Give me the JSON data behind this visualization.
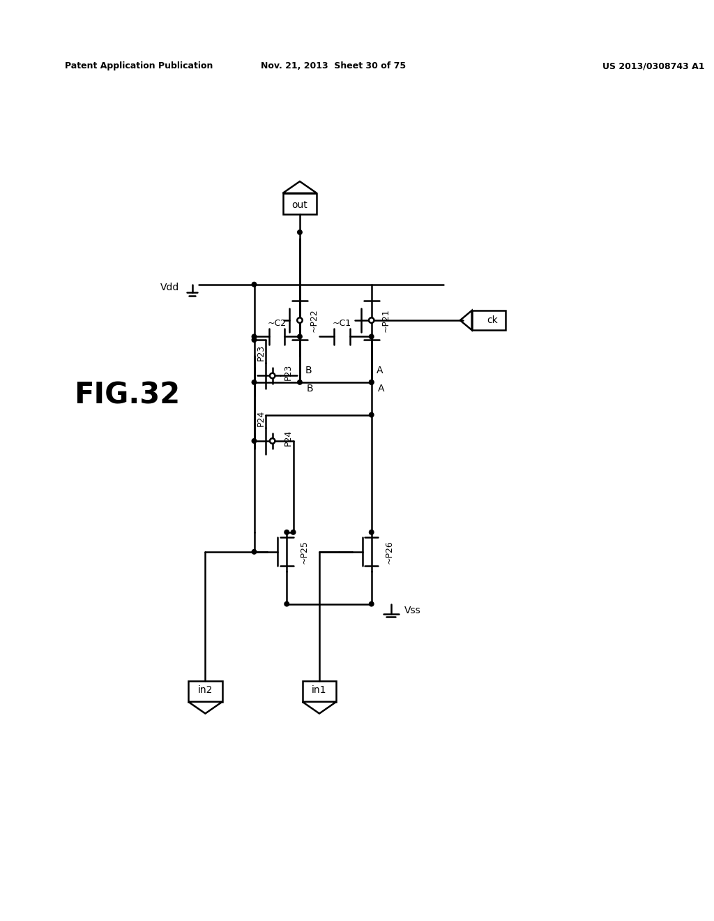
{
  "title": "FIG.32",
  "header_left": "Patent Application Publication",
  "header_mid": "Nov. 21, 2013  Sheet 30 of 75",
  "header_right": "US 2013/0308743 A1",
  "background": "#ffffff",
  "line_color": "#000000",
  "line_width": 1.8,
  "fig_label": "FIG.32",
  "labels": {
    "Vdd": "Vdd",
    "out": "out",
    "ck": "ck",
    "Vss": "Vss",
    "in1": "in1",
    "in2": "in2",
    "P21": "~P21",
    "P22": "~P22",
    "P23": "P23",
    "P24": "P24",
    "P25": "~P25",
    "P26": "~P26",
    "C1": "~C1",
    "C2": "~C2",
    "A": "A",
    "B": "B"
  }
}
